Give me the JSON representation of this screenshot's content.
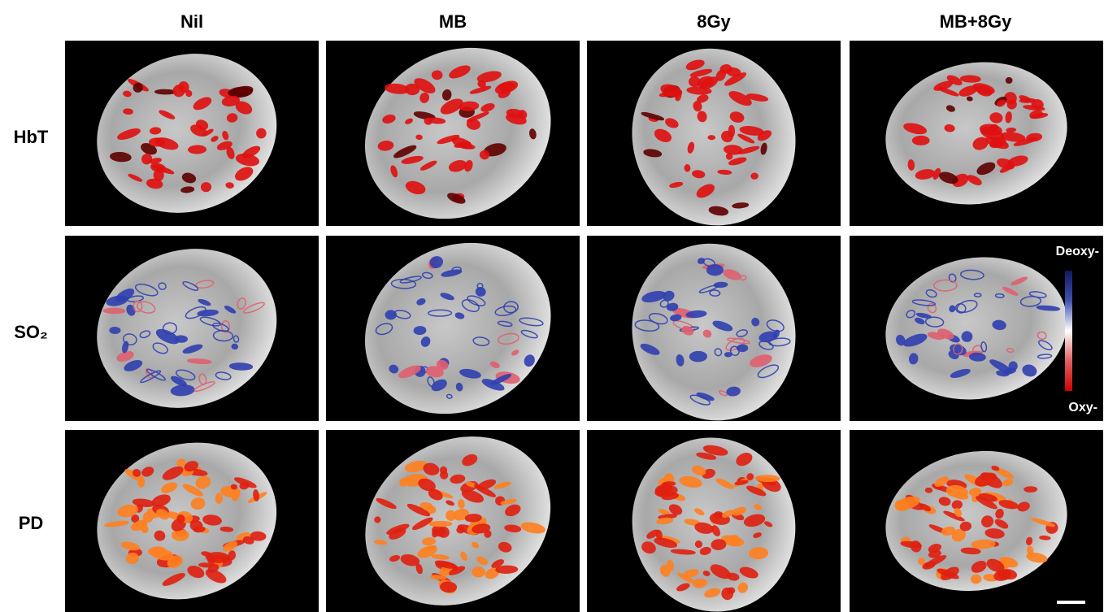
{
  "columns": [
    "Nil",
    "MB",
    "8Gy",
    "MB+8Gy"
  ],
  "rows": [
    "HbT",
    "SO₂",
    "PD"
  ],
  "colorbar": {
    "top": "Deoxy-",
    "bottom": "Oxy-"
  }
}
